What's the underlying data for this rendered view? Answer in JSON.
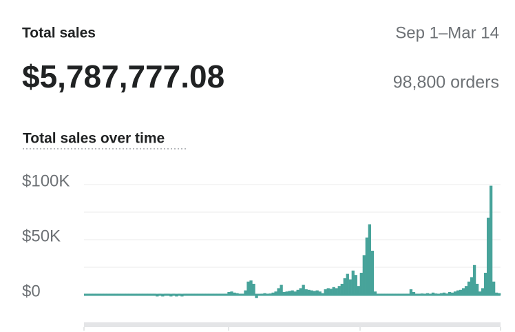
{
  "header": {
    "title": "Total sales",
    "date_range": "Sep 1–Mar 14",
    "total": "$5,787,777.08",
    "orders": "98,800 orders"
  },
  "chart_data": {
    "type": "bar",
    "title": "Total sales over time",
    "color": "#47a39a",
    "ylim": [
      -2500,
      100000
    ],
    "yticks": [
      {
        "value": 0,
        "label": "$0"
      },
      {
        "value": 50000,
        "label": "$50K"
      },
      {
        "value": 100000,
        "label": "$100K"
      }
    ],
    "minor_gridlines": [
      25000,
      75000
    ],
    "grid": true,
    "values": [
      1000,
      1000,
      1000,
      1000,
      1000,
      1000,
      1000,
      1000,
      1000,
      1000,
      1000,
      1000,
      1000,
      1000,
      1000,
      1000,
      1000,
      1000,
      1000,
      1000,
      1000,
      1000,
      1000,
      1000,
      1000,
      1000,
      -1500,
      1000,
      -1500,
      1000,
      1000,
      -1500,
      1000,
      -1500,
      1000,
      -1500,
      1000,
      1000,
      1000,
      1000,
      1000,
      1000,
      1000,
      1000,
      1000,
      1000,
      1000,
      1000,
      1000,
      1000,
      1000,
      1000,
      2500,
      3000,
      2000,
      1500,
      1000,
      1000,
      4000,
      12000,
      13000,
      10000,
      -3000,
      800,
      1000,
      1500,
      1000,
      1200,
      2000,
      3000,
      6000,
      9000,
      2500,
      3000,
      3500,
      4000,
      3000,
      4500,
      6000,
      9000,
      5000,
      4500,
      4000,
      3500,
      4000,
      3000,
      1500,
      5000,
      6000,
      5500,
      7000,
      6000,
      8000,
      10000,
      15000,
      19000,
      14000,
      22000,
      18000,
      8000,
      20000,
      36000,
      52000,
      64000,
      40000,
      3000,
      1000,
      1000,
      1000,
      1000,
      1000,
      1000,
      1000,
      1000,
      1000,
      1000,
      1000,
      1000,
      5000,
      2500,
      1000,
      1000,
      1200,
      1000,
      1500,
      1000,
      2000,
      1200,
      1000,
      1500,
      2000,
      1200,
      2500,
      2000,
      3000,
      4000,
      4500,
      6000,
      8000,
      12000,
      16000,
      27000,
      10000,
      3000,
      6000,
      20000,
      70000,
      99000,
      12000,
      2000,
      1500
    ]
  }
}
